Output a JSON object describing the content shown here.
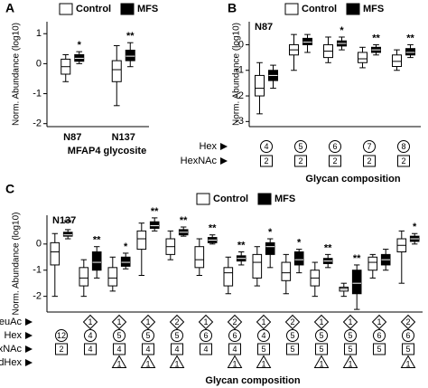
{
  "chart_data": [
    {
      "type": "box",
      "panel": "A",
      "ylabel": "Norm. Abundance (log10)",
      "xlabel": "MFAP4 glycosite",
      "categories": [
        "N87",
        "N137"
      ],
      "ylim": [
        -2.1,
        1.4
      ],
      "yticks": [
        -2,
        -1,
        0,
        1
      ],
      "series": [
        {
          "name": "Control",
          "color": "#ffffff",
          "values": [
            [
              -0.6,
              -0.35,
              -0.1,
              0.15,
              0.3
            ],
            [
              -1.4,
              -0.6,
              -0.2,
              0.1,
              0.6
            ]
          ]
        },
        {
          "name": "MFS",
          "color": "#000000",
          "values": [
            [
              0.0,
              0.08,
              0.18,
              0.3,
              0.4
            ],
            [
              -0.1,
              0.1,
              0.25,
              0.45,
              0.7
            ]
          ]
        }
      ],
      "annotations": [
        "*",
        "**"
      ]
    },
    {
      "type": "box",
      "panel": "B",
      "title": "N87",
      "ylabel": "Norm. Abundance (log10)",
      "xlabel": "Glycan composition",
      "ylim": [
        -3.2,
        0.9
      ],
      "yticks": [
        -3,
        -2,
        -1,
        0
      ],
      "series": [
        {
          "name": "Control",
          "color": "#ffffff",
          "values": [
            [
              -2.7,
              -2.0,
              -1.7,
              -1.2,
              -0.7
            ],
            [
              -1.0,
              -0.4,
              -0.2,
              0.0,
              0.4
            ],
            [
              -0.7,
              -0.5,
              -0.25,
              0.0,
              0.3
            ],
            [
              -0.9,
              -0.7,
              -0.55,
              -0.3,
              -0.1
            ],
            [
              -1.0,
              -0.85,
              -0.65,
              -0.4,
              -0.2
            ]
          ]
        },
        {
          "name": "MFS",
          "color": "#000000",
          "values": [
            [
              -1.7,
              -1.4,
              -1.2,
              -1.0,
              -0.8
            ],
            [
              -0.3,
              0.0,
              0.1,
              0.25,
              0.4
            ],
            [
              -0.2,
              -0.05,
              0.05,
              0.15,
              0.3
            ],
            [
              -0.4,
              -0.3,
              -0.2,
              -0.1,
              0.0
            ],
            [
              -0.5,
              -0.4,
              -0.3,
              -0.15,
              0.0
            ]
          ]
        }
      ],
      "annotations": [
        null,
        null,
        "*",
        "**",
        "**"
      ],
      "composition": [
        {
          "label": "Hex",
          "marker": "circle",
          "values": [
            4,
            5,
            6,
            7,
            8
          ]
        },
        {
          "label": "HexNAc",
          "marker": "square",
          "values": [
            2,
            2,
            2,
            2,
            2
          ]
        }
      ]
    },
    {
      "type": "box",
      "panel": "C",
      "title": "N137",
      "ylabel": "Norm. Abundance (log10)",
      "xlabel": "Glycan composition",
      "ylim": [
        -2.6,
        1.1
      ],
      "yticks": [
        -2,
        -1,
        0
      ],
      "series": [
        {
          "name": "Control",
          "color": "#ffffff",
          "values": [
            [
              -2.0,
              -0.8,
              -0.3,
              0.05,
              0.4
            ],
            [
              -2.0,
              -1.6,
              -1.3,
              -0.9,
              -0.6
            ],
            [
              -1.8,
              -1.6,
              -1.3,
              -0.9,
              -0.5
            ],
            [
              -1.2,
              -0.2,
              0.2,
              0.5,
              0.8
            ],
            [
              -0.6,
              -0.4,
              -0.1,
              0.2,
              0.5
            ],
            [
              -1.2,
              -0.9,
              -0.6,
              -0.1,
              0.2
            ],
            [
              -1.9,
              -1.6,
              -1.1,
              -0.9,
              -0.5
            ],
            [
              -1.6,
              -1.3,
              -0.7,
              -0.4,
              -0.1
            ],
            [
              -1.9,
              -1.4,
              -1.1,
              -0.7,
              -0.4
            ],
            [
              -2.0,
              -1.6,
              -1.3,
              -1.0,
              -0.7
            ],
            [
              -2.0,
              -1.8,
              -1.7,
              -1.65,
              -1.5
            ],
            [
              -1.3,
              -1.0,
              -0.7,
              -0.5,
              -0.4
            ],
            [
              -1.5,
              -0.3,
              -0.05,
              0.2,
              0.5
            ]
          ]
        },
        {
          "name": "MFS",
          "color": "#000000",
          "values": [
            [
              0.2,
              0.3,
              0.35,
              0.45,
              0.55
            ],
            [
              -1.3,
              -1.0,
              -0.7,
              -0.3,
              -0.1
            ],
            [
              -0.95,
              -0.85,
              -0.7,
              -0.5,
              -0.35
            ],
            [
              0.5,
              0.6,
              0.7,
              0.85,
              1.0
            ],
            [
              0.3,
              0.35,
              0.45,
              0.55,
              0.65
            ],
            [
              0.0,
              0.05,
              0.15,
              0.25,
              0.35
            ],
            [
              -0.8,
              -0.65,
              -0.55,
              -0.45,
              -0.3
            ],
            [
              -0.9,
              -0.4,
              -0.1,
              0.05,
              0.2
            ],
            [
              -1.1,
              -0.8,
              -0.6,
              -0.3,
              -0.2
            ],
            [
              -0.9,
              -0.75,
              -0.65,
              -0.55,
              -0.4
            ],
            [
              -2.5,
              -1.9,
              -1.5,
              -1.0,
              -0.8
            ],
            [
              -1.0,
              -0.8,
              -0.6,
              -0.4,
              -0.2
            ],
            [
              0.0,
              0.1,
              0.2,
              0.3,
              0.4
            ]
          ]
        }
      ],
      "annotations": [
        "**",
        "**",
        "*",
        "**",
        "**",
        "**",
        "**",
        "*",
        "*",
        "**",
        "**",
        null,
        "*"
      ],
      "composition": [
        {
          "label": "NeuAc",
          "marker": "diamond",
          "values": [
            null,
            1,
            1,
            1,
            2,
            1,
            2,
            1,
            2,
            1,
            1,
            1,
            2
          ]
        },
        {
          "label": "Hex",
          "marker": "circle",
          "values": [
            12,
            4,
            5,
            5,
            5,
            6,
            6,
            4,
            5,
            5,
            5,
            6,
            6
          ]
        },
        {
          "label": "HexNAc",
          "marker": "square",
          "values": [
            2,
            4,
            4,
            4,
            4,
            4,
            4,
            5,
            5,
            5,
            5,
            5,
            5
          ]
        },
        {
          "label": "dHex",
          "marker": "triangle",
          "values": [
            null,
            null,
            1,
            1,
            1,
            null,
            1,
            1,
            null,
            1,
            1,
            null,
            1
          ]
        }
      ]
    }
  ]
}
